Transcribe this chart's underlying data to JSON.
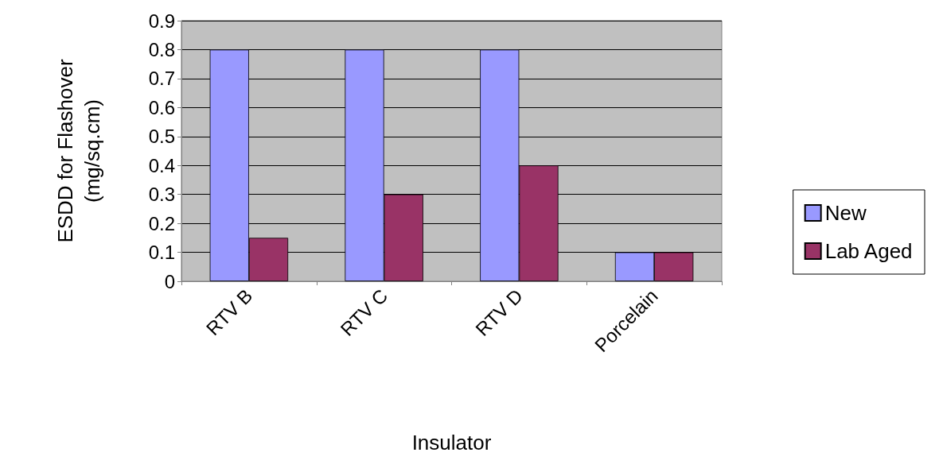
{
  "chart_data": {
    "type": "bar",
    "xlabel": "Insulator",
    "ylabel": "ESDD for Flashover\n(mg/sq.cm)",
    "categories": [
      "RTV B",
      "RTV C",
      "RTV D",
      "Porcelain"
    ],
    "series": [
      {
        "name": "New",
        "color": "#9999ff",
        "values": [
          0.8,
          0.8,
          0.8,
          0.1
        ]
      },
      {
        "name": "Lab Aged",
        "color": "#993366",
        "values": [
          0.15,
          0.3,
          0.4,
          0.1
        ]
      }
    ],
    "ylim": [
      0,
      0.9
    ],
    "yticks": [
      0,
      0.1,
      0.2,
      0.3,
      0.4,
      0.5,
      0.6,
      0.7,
      0.8,
      0.9
    ],
    "grid": "y",
    "legend": "right"
  }
}
